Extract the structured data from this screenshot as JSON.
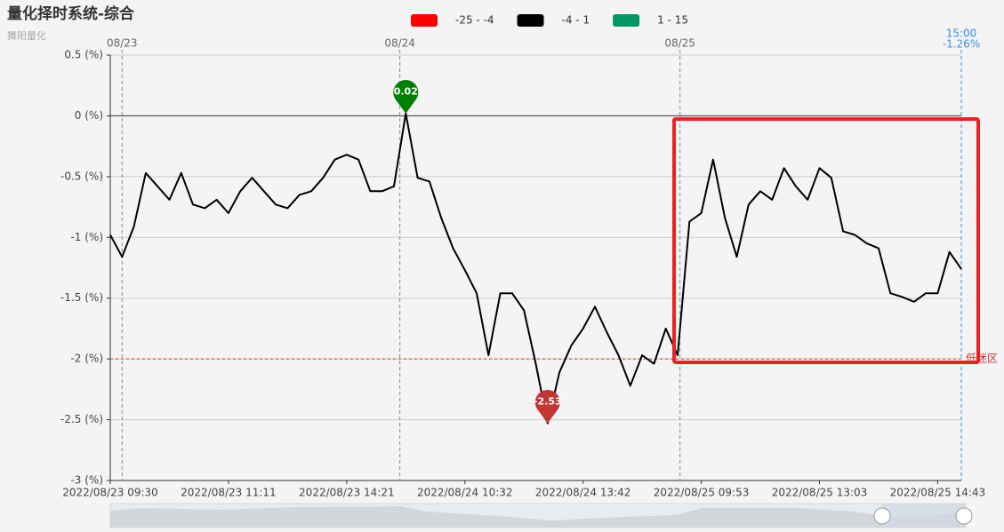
{
  "chart_data": {
    "type": "line",
    "title": "量化择时系统-综合",
    "subtitle": "舞阳量化",
    "categories": [
      "2022/08/23 09:30",
      null,
      null,
      null,
      null,
      null,
      null,
      null,
      null,
      null,
      "2022/08/23 11:11",
      null,
      null,
      null,
      null,
      null,
      null,
      null,
      null,
      null,
      "2022/08/23 14:21",
      null,
      null,
      null,
      null,
      null,
      null,
      null,
      null,
      null,
      "2022/08/24 10:32",
      null,
      null,
      null,
      null,
      null,
      null,
      null,
      null,
      null,
      "2022/08/24 13:42",
      null,
      null,
      null,
      null,
      null,
      null,
      null,
      null,
      null,
      "2022/08/25 09:53",
      null,
      null,
      null,
      null,
      null,
      null,
      null,
      null,
      null,
      "2022/08/25 13:03",
      null,
      null,
      null,
      null,
      null,
      null,
      null,
      null,
      null,
      "2022/08/25 14:43",
      null,
      null
    ],
    "series": [
      {
        "name": "-4 - 1",
        "color": "#000000",
        "values": [
          -0.98,
          -1.16,
          -0.91,
          -0.47,
          -0.58,
          -0.69,
          -0.47,
          -0.73,
          -0.76,
          -0.69,
          -0.8,
          -0.62,
          -0.51,
          -0.62,
          -0.73,
          -0.76,
          -0.65,
          -0.62,
          -0.51,
          -0.36,
          -0.32,
          -0.36,
          -0.62,
          -0.62,
          -0.58,
          0.02,
          -0.51,
          -0.54,
          -0.84,
          -1.09,
          -1.27,
          -1.46,
          -1.97,
          -1.46,
          -1.46,
          -1.6,
          -2.04,
          -2.53,
          -2.11,
          -1.89,
          -1.75,
          -1.57,
          -1.78,
          -1.97,
          -2.22,
          -1.97,
          -2.04,
          -1.75,
          -1.97,
          -0.87,
          -0.8,
          -0.36,
          -0.84,
          -1.16,
          -0.73,
          -0.62,
          -0.69,
          -0.43,
          -0.58,
          -0.69,
          -0.43,
          -0.51,
          -0.95,
          -0.98,
          -1.05,
          -1.09,
          -1.46,
          -1.49,
          -1.53,
          -1.46,
          -1.46,
          -1.12,
          -1.26
        ]
      }
    ],
    "pieces": [
      {
        "label": "-25 - -4",
        "color": "#ff0000"
      },
      {
        "label": "-4 - 1",
        "color": "#000000"
      },
      {
        "label": "1 - 15",
        "color": "#009966"
      }
    ],
    "top_labels": [
      {
        "at": 1,
        "label": "08/23"
      },
      {
        "at": 24.5,
        "label": "08/24"
      },
      {
        "at": 48.2,
        "label": "08/25"
      }
    ],
    "end_marker": {
      "time": "15:00",
      "label": "-1.26%"
    },
    "markpoints": [
      {
        "type": "max",
        "color": "#008000"
      },
      {
        "type": "min",
        "color": "#c23531"
      }
    ],
    "markline": {
      "value": -2,
      "label": "低迷区",
      "color": "#c23531"
    },
    "ylim": [
      -3,
      0.5
    ],
    "yticks": [
      {
        "value": -3,
        "label": "-3 (%)"
      },
      {
        "value": -2.5,
        "label": "-2.5 (%)"
      },
      {
        "value": -2,
        "label": "-2 (%)"
      },
      {
        "value": -1.5,
        "label": "-1.5 (%)"
      },
      {
        "value": -1,
        "label": "-1 (%)"
      },
      {
        "value": -0.5,
        "label": "-0.5 (%)"
      },
      {
        "value": 0,
        "label": "0 (%)"
      },
      {
        "value": 0.5,
        "label": "0.5 (%)"
      }
    ],
    "grid": true
  }
}
